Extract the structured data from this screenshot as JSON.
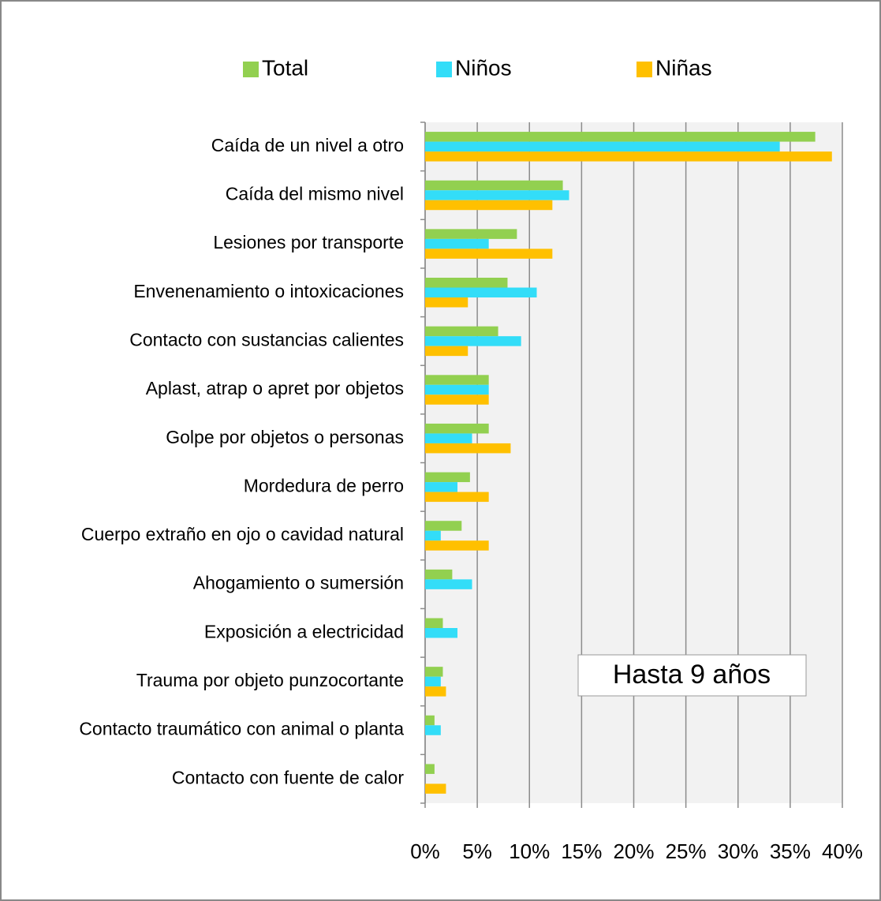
{
  "chart_data": {
    "type": "bar",
    "orientation": "horizontal",
    "categories": [
      "Caída de un nivel a otro",
      "Caída del mismo nivel",
      "Lesiones por transporte",
      "Envenenamiento o intoxicaciones",
      "Contacto con sustancias calientes",
      "Aplast, atrap o apret por objetos",
      "Golpe por objetos o personas",
      "Mordedura de perro",
      "Cuerpo extraño en ojo o cavidad natural",
      "Ahogamiento o sumersión",
      "Exposición a electricidad",
      "Trauma por objeto punzocortante",
      "Contacto traumático con animal o planta",
      "Contacto con fuente de calor"
    ],
    "series": [
      {
        "name": "Total",
        "color": "#92d050",
        "values": [
          37.4,
          13.2,
          8.8,
          7.9,
          7.0,
          6.1,
          6.1,
          4.3,
          3.5,
          2.6,
          1.7,
          1.7,
          0.9,
          0.9
        ]
      },
      {
        "name": "Niños",
        "color": "#33ddf8",
        "values": [
          34.0,
          13.8,
          6.1,
          10.7,
          9.2,
          6.1,
          4.5,
          3.1,
          1.5,
          4.5,
          3.1,
          1.5,
          1.5,
          0
        ]
      },
      {
        "name": "Niñas",
        "color": "#ffc000",
        "values": [
          39.0,
          12.2,
          12.2,
          4.1,
          4.1,
          6.1,
          8.2,
          6.1,
          6.1,
          0,
          0,
          2.0,
          0,
          2.0
        ]
      }
    ],
    "xlim": [
      0,
      40
    ],
    "xticks": [
      {
        "value": 0,
        "label": "0%"
      },
      {
        "value": 5,
        "label": "5%"
      },
      {
        "value": 10,
        "label": "10%"
      },
      {
        "value": 15,
        "label": "15%"
      },
      {
        "value": 20,
        "label": "20%"
      },
      {
        "value": 25,
        "label": "25%"
      },
      {
        "value": 30,
        "label": "30%"
      },
      {
        "value": 35,
        "label": "35%"
      },
      {
        "value": 40,
        "label": "40%"
      }
    ],
    "grid": true,
    "legend": "top",
    "annotation": "Hasta 9 años"
  }
}
